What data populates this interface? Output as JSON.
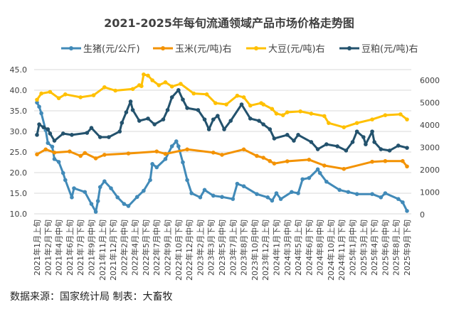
{
  "chart_data": {
    "type": "line",
    "title": "2021-2025年每旬流通领域产品市场价格走势图",
    "source": "数据来源：国家统计局  制表：大畜牧",
    "left_axis": {
      "ylim": [
        10,
        45
      ],
      "ticks": [
        "10.0",
        "15.0",
        "20.0",
        "25.0",
        "30.0",
        "35.0",
        "40.0",
        "45.0"
      ]
    },
    "right_axis": {
      "ylim": [
        0,
        6000
      ],
      "ticks": [
        "0",
        "1000",
        "2000",
        "3000",
        "4000",
        "5000",
        "6000"
      ]
    },
    "grid": true,
    "legend_position": "top",
    "x_tick_labels": [
      "2021年1月上旬",
      "2021年2月下旬",
      "2021年4月中旬",
      "2021年6月上旬",
      "2021年7月下旬",
      "2021年9月中旬",
      "2021年11月上旬",
      "2021年12月下旬",
      "2022年2月中旬",
      "2022年4月上旬",
      "2022年5月下旬",
      "2022年7月中旬",
      "2022年9月上旬",
      "2022年10月下旬",
      "2022年12月中旬",
      "2023年2月上旬",
      "2023年3月下旬",
      "2023年5月中旬",
      "2023年7月上旬",
      "2023年8月下旬",
      "2023年10月中旬",
      "2023年12月上旬",
      "2024年1月下旬",
      "2024年3月中旬",
      "2024年5月上旬",
      "2024年6月下旬",
      "2024年8月中旬",
      "2024年10月上旬",
      "2024年11月下旬",
      "2025年1月中旬",
      "2025年3月上旬",
      "2025年4月下旬",
      "2025年6月中旬",
      "2025年8月上旬",
      "2025年9月下旬"
    ],
    "series": [
      {
        "name": "生猪(元/公斤)",
        "axis": "left",
        "color": "#418ab8",
        "points": [
          [
            "2021年1月上旬",
            37.0
          ],
          [
            "2021年1月中旬",
            36.0
          ],
          [
            "2021年1月下旬",
            34.4
          ],
          [
            "2021年2月中旬",
            30.3
          ],
          [
            "2021年2月下旬",
            27.2
          ],
          [
            "2021年3月中旬",
            26.3
          ],
          [
            "2021年3月下旬",
            23.3
          ],
          [
            "2021年4月中旬",
            22.6
          ],
          [
            "2021年5月上旬",
            19.9
          ],
          [
            "2021年5月中旬",
            18.2
          ],
          [
            "2021年6月中旬",
            14.0
          ],
          [
            "2021年6月下旬",
            16.2
          ],
          [
            "2021年8月中旬",
            15.3
          ],
          [
            "2021年9月中旬",
            12.4
          ],
          [
            "2021年10月上旬",
            10.5
          ],
          [
            "2021年10月中旬",
            13.1
          ],
          [
            "2021年10月下旬",
            16.5
          ],
          [
            "2021年11月中旬",
            17.9
          ],
          [
            "2021年12月中旬",
            16.2
          ],
          [
            "2022年1月中旬",
            14.0
          ],
          [
            "2022年2月中旬",
            12.4
          ],
          [
            "2022年3月上旬",
            11.9
          ],
          [
            "2022年4月中旬",
            14.1
          ],
          [
            "2022年5月中旬",
            15.6
          ],
          [
            "2022年6月中旬",
            18.2
          ],
          [
            "2022年6月下旬",
            22.1
          ],
          [
            "2022年7月中旬",
            21.3
          ],
          [
            "2022年8月下旬",
            23.3
          ],
          [
            "2022年9月下旬",
            26.4
          ],
          [
            "2022年10月中旬",
            27.6
          ],
          [
            "2022年10月下旬",
            26.4
          ],
          [
            "2022年11月中旬",
            22.5
          ],
          [
            "2022年12月上旬",
            18.2
          ],
          [
            "2022年12月下旬",
            15.0
          ],
          [
            "2023年2月上旬",
            14.0
          ],
          [
            "2023年2月下旬",
            15.8
          ],
          [
            "2023年4月上旬",
            14.4
          ],
          [
            "2023年5月中旬",
            14.1
          ],
          [
            "2023年7月上旬",
            13.6
          ],
          [
            "2023年7月下旬",
            17.3
          ],
          [
            "2023年8月下旬",
            16.7
          ],
          [
            "2023年10月下旬",
            14.8
          ],
          [
            "2023年12月中旬",
            14.0
          ],
          [
            "2024年1月上旬",
            13.2
          ],
          [
            "2024年1月下旬",
            15.0
          ],
          [
            "2024年2月中旬",
            13.6
          ],
          [
            "2024年4月上旬",
            15.3
          ],
          [
            "2024年5月上旬",
            15.0
          ],
          [
            "2024年5月下旬",
            18.4
          ],
          [
            "2024年6月下旬",
            18.7
          ],
          [
            "2024年8月上旬",
            20.8
          ],
          [
            "2024年8月中旬",
            19.9
          ],
          [
            "2024年9月中旬",
            17.8
          ],
          [
            "2024年11月中旬",
            15.8
          ],
          [
            "2024年12月下旬",
            15.3
          ],
          [
            "2025年2月上旬",
            14.8
          ],
          [
            "2025年4月中旬",
            14.8
          ],
          [
            "2025年5月下旬",
            14.0
          ],
          [
            "2025年6月中旬",
            15.0
          ],
          [
            "2025年8月中旬",
            13.6
          ],
          [
            "2025年9月上旬",
            12.8
          ],
          [
            "2025年9月下旬",
            10.7
          ]
        ]
      },
      {
        "name": "玉米(元/吨)右",
        "axis": "right",
        "color": "#f39200",
        "points": [
          [
            "2021年1月上旬",
            2690
          ],
          [
            "2021年2月中旬",
            2910
          ],
          [
            "2021年3月下旬",
            2770
          ],
          [
            "2021年6月上旬",
            2820
          ],
          [
            "2021年7月下旬",
            2620
          ],
          [
            "2021年8月中旬",
            2750
          ],
          [
            "2021年10月上旬",
            2510
          ],
          [
            "2021年11月中旬",
            2670
          ],
          [
            "2022年3月上旬",
            2730
          ],
          [
            "2022年7月中旬",
            2820
          ],
          [
            "2022年8月下旬",
            2710
          ],
          [
            "2022年12月上旬",
            2910
          ],
          [
            "2023年4月上旬",
            2770
          ],
          [
            "2023年5月中旬",
            2670
          ],
          [
            "2023年8月下旬",
            2910
          ],
          [
            "2023年10月下旬",
            2620
          ],
          [
            "2023年11月下旬",
            2540
          ],
          [
            "2023年12月下旬",
            2390
          ],
          [
            "2024年1月中旬",
            2280
          ],
          [
            "2024年3月中旬",
            2380
          ],
          [
            "2024年6月下旬",
            2450
          ],
          [
            "2024年9月上旬",
            2190
          ],
          [
            "2024年12月上旬",
            2040
          ],
          [
            "2025年4月中旬",
            2360
          ],
          [
            "2025年6月中旬",
            2390
          ],
          [
            "2025年9月上旬",
            2390
          ],
          [
            "2025年9月下旬",
            2150
          ]
        ]
      },
      {
        "name": "大豆(元/吨)右",
        "axis": "right",
        "color": "#ffc000",
        "points": [
          [
            "2021年1月上旬",
            5130
          ],
          [
            "2021年1月下旬",
            5410
          ],
          [
            "2021年3月上旬",
            5480
          ],
          [
            "2021年4月中旬",
            5200
          ],
          [
            "2021年5月中旬",
            5370
          ],
          [
            "2021年7月下旬",
            5240
          ],
          [
            "2021年9月下旬",
            5330
          ],
          [
            "2021年11月中旬",
            5690
          ],
          [
            "2022年1月上旬",
            5540
          ],
          [
            "2022年3月下旬",
            5610
          ],
          [
            "2022年4月下旬",
            5780
          ],
          [
            "2022年5月上旬",
            5740
          ],
          [
            "2022年5月中旬",
            6260
          ],
          [
            "2022年6月上旬",
            6210
          ],
          [
            "2022年6月下旬",
            6000
          ],
          [
            "2022年7月下旬",
            5780
          ],
          [
            "2022年8月下旬",
            5910
          ],
          [
            "2022年9月下旬",
            5720
          ],
          [
            "2022年11月上旬",
            5840
          ],
          [
            "2023年1月上旬",
            5410
          ],
          [
            "2023年3月上旬",
            5370
          ],
          [
            "2023年4月中旬",
            4980
          ],
          [
            "2023年6月上旬",
            4920
          ],
          [
            "2023年7月下旬",
            5310
          ],
          [
            "2023年8月下旬",
            5240
          ],
          [
            "2023年9月下旬",
            4870
          ],
          [
            "2023年11月中旬",
            4980
          ],
          [
            "2023年11月下旬",
            4920
          ],
          [
            "2024年1月上旬",
            4720
          ],
          [
            "2024年1月下旬",
            4510
          ],
          [
            "2024年2月下旬",
            4440
          ],
          [
            "2024年3月中旬",
            4570
          ],
          [
            "2024年5月中旬",
            4610
          ],
          [
            "2024年7月上旬",
            4510
          ],
          [
            "2024年9月上旬",
            4400
          ],
          [
            "2024年9月下旬",
            4090
          ],
          [
            "2024年12月上旬",
            3900
          ],
          [
            "2025年2月上旬",
            4090
          ],
          [
            "2025年4月中旬",
            4250
          ],
          [
            "2025年6月中旬",
            4440
          ],
          [
            "2025年8月下旬",
            4480
          ],
          [
            "2025年9月下旬",
            4250
          ]
        ]
      },
      {
        "name": "豆粕(元/吨)右",
        "axis": "right",
        "color": "#23526d",
        "points": [
          [
            "2021年1月上旬",
            3560
          ],
          [
            "2021年1月中旬",
            4030
          ],
          [
            "2021年2月上旬",
            3900
          ],
          [
            "2021年2月下旬",
            3810
          ],
          [
            "2021年3月上旬",
            3620
          ],
          [
            "2021年3月下旬",
            3300
          ],
          [
            "2021年5月上旬",
            3620
          ],
          [
            "2021年6月中旬",
            3560
          ],
          [
            "2021年8月下旬",
            3650
          ],
          [
            "2021年9月中旬",
            3870
          ],
          [
            "2021年10月下旬",
            3460
          ],
          [
            "2021年12月上旬",
            3460
          ],
          [
            "2022年1月下旬",
            3710
          ],
          [
            "2022年2月上旬",
            4100
          ],
          [
            "2022年2月下旬",
            4570
          ],
          [
            "2022年3月中旬",
            5050
          ],
          [
            "2022年3月下旬",
            4670
          ],
          [
            "2022年4月下旬",
            4190
          ],
          [
            "2022年6月上旬",
            4290
          ],
          [
            "2022年7月上旬",
            4030
          ],
          [
            "2022年8月中旬",
            4250
          ],
          [
            "2022年9月上旬",
            4670
          ],
          [
            "2022年9月下旬",
            5240
          ],
          [
            "2022年10月下旬",
            5560
          ],
          [
            "2022年11月中旬",
            5140
          ],
          [
            "2022年12月上旬",
            4760
          ],
          [
            "2023年1月下旬",
            4670
          ],
          [
            "2023年2月下旬",
            4250
          ],
          [
            "2023年3月中旬",
            3810
          ],
          [
            "2023年4月上旬",
            4250
          ],
          [
            "2023年4月下旬",
            4410
          ],
          [
            "2023年5月下旬",
            3810
          ],
          [
            "2023年6月下旬",
            4190
          ],
          [
            "2023年8月中旬",
            4920
          ],
          [
            "2023年9月下旬",
            4290
          ],
          [
            "2023年11月上旬",
            4190
          ],
          [
            "2023年11月下旬",
            4030
          ],
          [
            "2023年12月下旬",
            3810
          ],
          [
            "2024年1月中旬",
            3400
          ],
          [
            "2024年3月中旬",
            3560
          ],
          [
            "2024年4月中旬",
            3300
          ],
          [
            "2024年5月上旬",
            3560
          ],
          [
            "2024年7月上旬",
            3240
          ],
          [
            "2024年8月上旬",
            2920
          ],
          [
            "2024年9月中旬",
            3140
          ],
          [
            "2024年11月上旬",
            3050
          ],
          [
            "2024年12月中旬",
            2860
          ],
          [
            "2025年1月中旬",
            3240
          ],
          [
            "2025年2月上旬",
            3710
          ],
          [
            "2025年3月上旬",
            3460
          ],
          [
            "2025年3月中旬",
            3140
          ],
          [
            "2025年4月中旬",
            3710
          ],
          [
            "2025年4月下旬",
            3240
          ],
          [
            "2025年5月下旬",
            2920
          ],
          [
            "2025年7月上旬",
            2860
          ],
          [
            "2025年8月中旬",
            3080
          ],
          [
            "2025年9月下旬",
            2980
          ]
        ]
      }
    ]
  }
}
